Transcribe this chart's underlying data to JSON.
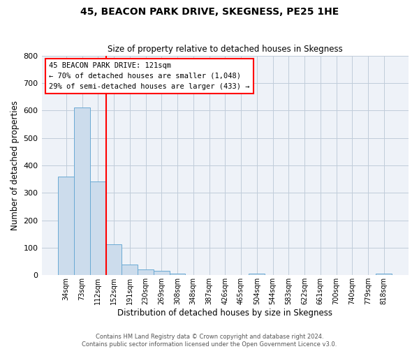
{
  "title": "45, BEACON PARK DRIVE, SKEGNESS, PE25 1HE",
  "subtitle": "Size of property relative to detached houses in Skegness",
  "xlabel": "Distribution of detached houses by size in Skegness",
  "ylabel": "Number of detached properties",
  "bin_labels": [
    "34sqm",
    "73sqm",
    "112sqm",
    "152sqm",
    "191sqm",
    "230sqm",
    "269sqm",
    "308sqm",
    "348sqm",
    "387sqm",
    "426sqm",
    "465sqm",
    "504sqm",
    "544sqm",
    "583sqm",
    "622sqm",
    "661sqm",
    "700sqm",
    "740sqm",
    "779sqm",
    "818sqm"
  ],
  "bar_heights": [
    358,
    611,
    341,
    113,
    39,
    20,
    15,
    5,
    0,
    0,
    0,
    0,
    5,
    0,
    0,
    0,
    0,
    0,
    0,
    0,
    5
  ],
  "bar_color": "#ccdcec",
  "bar_edgecolor": "#6aaad4",
  "ylim": [
    0,
    800
  ],
  "yticks": [
    0,
    100,
    200,
    300,
    400,
    500,
    600,
    700,
    800
  ],
  "red_line_index": 2,
  "annotation_title": "45 BEACON PARK DRIVE: 121sqm",
  "annotation_line1": "← 70% of detached houses are smaller (1,048)",
  "annotation_line2": "29% of semi-detached houses are larger (433) →",
  "footer_line1": "Contains HM Land Registry data © Crown copyright and database right 2024.",
  "footer_line2": "Contains public sector information licensed under the Open Government Licence v3.0.",
  "plot_bg_color": "#eef2f8",
  "grid_color": "#c0ccda",
  "figsize": [
    6.0,
    5.0
  ],
  "dpi": 100
}
